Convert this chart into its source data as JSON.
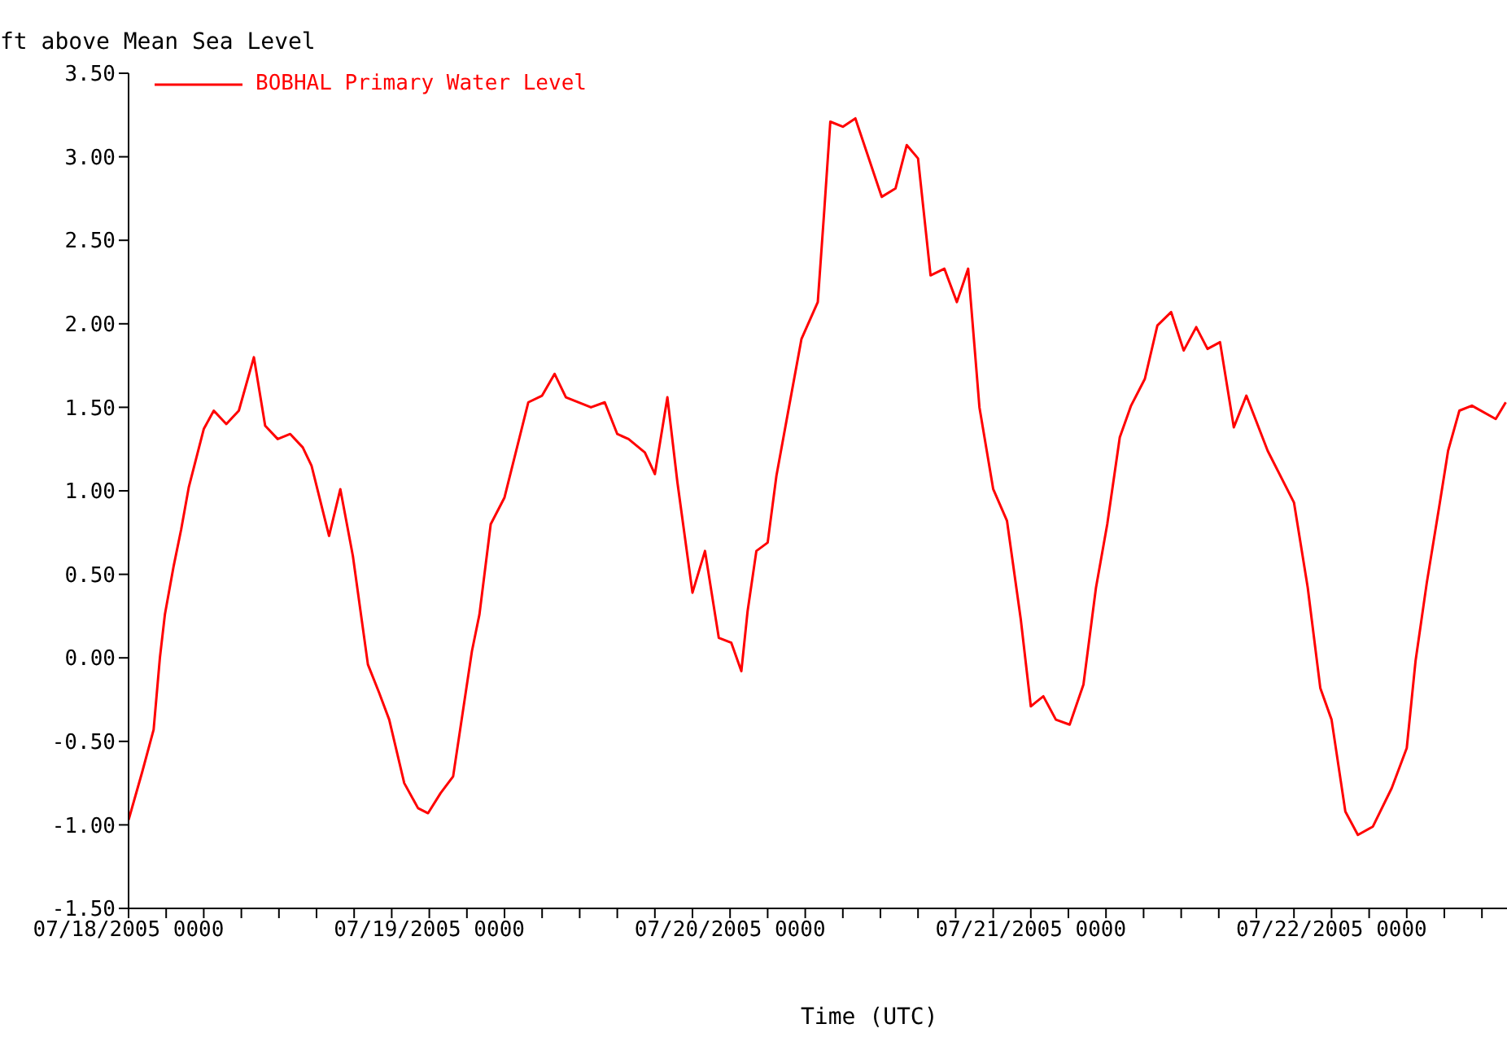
{
  "chart_data": {
    "type": "line",
    "ylabel": "ft above Mean Sea Level",
    "xlabel": "Time (UTC)",
    "legend": "top left",
    "marker": "none",
    "line_style": "solid",
    "xlim": [
      "2005-07-18T00:00",
      "2005-07-22T14:00"
    ],
    "xticks": [
      {
        "value": "2005-07-18T00:00",
        "label": "07/18/2005 0000"
      },
      {
        "value": "2005-07-18T03:00",
        "label": null
      },
      {
        "value": "2005-07-18T06:00",
        "label": null
      },
      {
        "value": "2005-07-18T09:00",
        "label": null
      },
      {
        "value": "2005-07-18T12:00",
        "label": null
      },
      {
        "value": "2005-07-18T15:00",
        "label": null
      },
      {
        "value": "2005-07-18T18:00",
        "label": null
      },
      {
        "value": "2005-07-18T21:00",
        "label": null
      },
      {
        "value": "2005-07-19T00:00",
        "label": "07/19/2005 0000"
      },
      {
        "value": "2005-07-19T03:00",
        "label": null
      },
      {
        "value": "2005-07-19T06:00",
        "label": null
      },
      {
        "value": "2005-07-19T09:00",
        "label": null
      },
      {
        "value": "2005-07-19T12:00",
        "label": null
      },
      {
        "value": "2005-07-19T15:00",
        "label": null
      },
      {
        "value": "2005-07-19T18:00",
        "label": null
      },
      {
        "value": "2005-07-19T21:00",
        "label": null
      },
      {
        "value": "2005-07-20T00:00",
        "label": "07/20/2005 0000"
      },
      {
        "value": "2005-07-20T03:00",
        "label": null
      },
      {
        "value": "2005-07-20T06:00",
        "label": null
      },
      {
        "value": "2005-07-20T09:00",
        "label": null
      },
      {
        "value": "2005-07-20T12:00",
        "label": null
      },
      {
        "value": "2005-07-20T15:00",
        "label": null
      },
      {
        "value": "2005-07-20T18:00",
        "label": null
      },
      {
        "value": "2005-07-20T21:00",
        "label": null
      },
      {
        "value": "2005-07-21T00:00",
        "label": "07/21/2005 0000"
      },
      {
        "value": "2005-07-21T03:00",
        "label": null
      },
      {
        "value": "2005-07-21T06:00",
        "label": null
      },
      {
        "value": "2005-07-21T09:00",
        "label": null
      },
      {
        "value": "2005-07-21T12:00",
        "label": null
      },
      {
        "value": "2005-07-21T15:00",
        "label": null
      },
      {
        "value": "2005-07-21T18:00",
        "label": null
      },
      {
        "value": "2005-07-21T21:00",
        "label": null
      },
      {
        "value": "2005-07-22T00:00",
        "label": "07/22/2005 0000"
      },
      {
        "value": "2005-07-22T03:00",
        "label": null
      },
      {
        "value": "2005-07-22T06:00",
        "label": null
      },
      {
        "value": "2005-07-22T09:00",
        "label": null
      },
      {
        "value": "2005-07-22T12:00",
        "label": null
      }
    ],
    "ylim": [
      -1.5,
      3.5
    ],
    "yticks": [
      {
        "value": -1.5,
        "label": "-1.50"
      },
      {
        "value": -1,
        "label": "-1.00"
      },
      {
        "value": -0.5,
        "label": "-0.50"
      },
      {
        "value": 0,
        "label": "0.00"
      },
      {
        "value": 0.5,
        "label": "0.50"
      },
      {
        "value": 1,
        "label": "1.00"
      },
      {
        "value": 1.5,
        "label": "1.50"
      },
      {
        "value": 2,
        "label": "2.00"
      },
      {
        "value": 2.5,
        "label": "2.50"
      },
      {
        "value": 3,
        "label": "3.00"
      },
      {
        "value": 3.5,
        "label": "3.50"
      }
    ],
    "x": [
      "2005-07-18T00:00",
      "2005-07-18T01:06",
      "2005-07-18T02:00",
      "2005-07-18T02:30",
      "2005-07-18T02:54",
      "2005-07-18T03:36",
      "2005-07-18T04:12",
      "2005-07-18T04:48",
      "2005-07-18T06:00",
      "2005-07-18T06:48",
      "2005-07-18T07:48",
      "2005-07-18T08:48",
      "2005-07-18T10:00",
      "2005-07-18T10:54",
      "2005-07-18T11:54",
      "2005-07-18T12:54",
      "2005-07-18T13:54",
      "2005-07-18T14:36",
      "2005-07-18T16:00",
      "2005-07-18T16:54",
      "2005-07-18T17:54",
      "2005-07-18T19:06",
      "2005-07-18T20:00",
      "2005-07-18T20:48",
      "2005-07-18T22:00",
      "2005-07-18T23:06",
      "2005-07-18T23:54",
      "2005-07-19T00:54",
      "2005-07-19T01:54",
      "2005-07-19T02:54",
      "2005-07-19T03:24",
      "2005-07-19T04:00",
      "2005-07-19T04:54",
      "2005-07-19T06:00",
      "2005-07-19T07:54",
      "2005-07-19T09:00",
      "2005-07-19T10:00",
      "2005-07-19T10:54",
      "2005-07-19T12:54",
      "2005-07-19T14:00",
      "2005-07-19T15:00",
      "2005-07-19T15:54",
      "2005-07-19T17:12",
      "2005-07-19T18:00",
      "2005-07-19T19:00",
      "2005-07-19T19:48",
      "2005-07-19T21:00",
      "2005-07-19T22:00",
      "2005-07-19T23:06",
      "2005-07-20T00:06",
      "2005-07-20T00:54",
      "2005-07-20T01:24",
      "2005-07-20T02:06",
      "2005-07-20T03:00",
      "2005-07-20T03:42",
      "2005-07-20T04:36",
      "2005-07-20T05:42",
      "2005-07-20T07:00",
      "2005-07-20T07:30",
      "2005-07-20T08:00",
      "2005-07-20T09:00",
      "2005-07-20T10:00",
      "2005-07-20T12:06",
      "2005-07-20T13:12",
      "2005-07-20T14:06",
      "2005-07-20T15:00",
      "2005-07-20T16:00",
      "2005-07-20T17:06",
      "2005-07-20T18:06",
      "2005-07-20T19:00",
      "2005-07-20T19:30",
      "2005-07-20T19:54",
      "2005-07-20T21:00",
      "2005-07-20T22:06",
      "2005-07-20T23:12",
      "2005-07-21T00:00",
      "2005-07-21T01:00",
      "2005-07-21T02:00",
      "2005-07-21T03:06",
      "2005-07-21T04:12",
      "2005-07-21T05:12",
      "2005-07-21T06:06",
      "2005-07-21T07:06",
      "2005-07-21T08:00",
      "2005-07-21T09:06",
      "2005-07-21T10:06",
      "2005-07-21T11:12",
      "2005-07-21T12:12",
      "2005-07-21T13:12",
      "2005-07-21T14:06",
      "2005-07-21T15:06",
      "2005-07-21T16:12",
      "2005-07-21T17:12",
      "2005-07-21T18:54",
      "2005-07-21T21:00",
      "2005-07-21T22:06",
      "2005-07-21T23:06",
      "2005-07-22T00:00",
      "2005-07-22T01:06",
      "2005-07-22T02:06",
      "2005-07-22T03:18",
      "2005-07-22T04:48",
      "2005-07-22T06:00",
      "2005-07-22T06:42",
      "2005-07-22T07:36",
      "2005-07-22T08:36",
      "2005-07-22T09:18",
      "2005-07-22T10:12",
      "2005-07-22T11:12",
      "2005-07-22T13:06",
      "2005-07-22T13:54"
    ],
    "series": [
      {
        "name": "BOBHAL Primary Water Level",
        "color": "#ff0000",
        "values": [
          -0.97,
          -0.68,
          -0.43,
          0.0,
          0.26,
          0.55,
          0.77,
          1.02,
          1.37,
          1.48,
          1.4,
          1.48,
          1.8,
          1.39,
          1.31,
          1.34,
          1.26,
          1.15,
          0.73,
          1.01,
          0.61,
          -0.04,
          -0.21,
          -0.37,
          -0.75,
          -0.9,
          -0.93,
          -0.81,
          -0.71,
          -0.21,
          0.04,
          0.26,
          0.8,
          0.96,
          1.53,
          1.57,
          1.7,
          1.56,
          1.5,
          1.53,
          1.34,
          1.31,
          1.23,
          1.1,
          1.56,
          1.05,
          0.39,
          0.64,
          0.12,
          0.09,
          -0.08,
          0.28,
          0.64,
          0.69,
          1.09,
          1.46,
          1.91,
          2.13,
          2.66,
          3.21,
          3.18,
          3.23,
          2.76,
          2.81,
          3.07,
          2.99,
          2.29,
          2.33,
          2.13,
          2.33,
          1.87,
          1.5,
          1.01,
          0.82,
          0.23,
          -0.29,
          -0.23,
          -0.37,
          -0.4,
          -0.16,
          0.42,
          0.8,
          1.32,
          1.51,
          1.67,
          1.99,
          2.07,
          1.84,
          1.98,
          1.85,
          1.89,
          1.38,
          1.57,
          1.24,
          0.93,
          0.42,
          -0.18,
          -0.37,
          -0.92,
          -1.06,
          -1.01,
          -0.78,
          -0.54,
          -0.02,
          0.45,
          0.91,
          1.24,
          1.48,
          1.51,
          1.43,
          1.53
        ]
      }
    ]
  }
}
